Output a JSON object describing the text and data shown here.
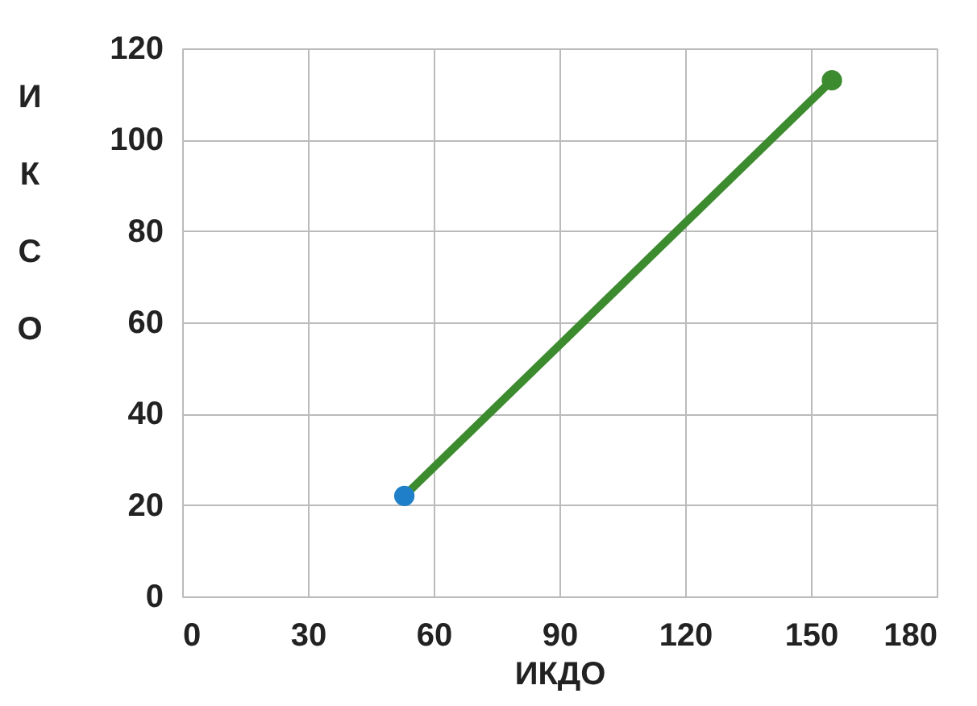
{
  "chart_data": {
    "type": "line",
    "xlabel": "ИКДО",
    "ylabel": "ИКСО",
    "series": [
      {
        "x": [
          53,
          155
        ],
        "values": [
          22,
          113
        ],
        "color": "#3d8b2f",
        "colors": [
          "#1f7fc8",
          "#3d8b2f"
        ],
        "marker": "circle",
        "line_style": "solid"
      }
    ],
    "xlim": [
      0,
      180
    ],
    "xticks": [
      0,
      30,
      60,
      90,
      120,
      150,
      180
    ],
    "ylim": [
      0,
      120
    ],
    "yticks": [
      0,
      20,
      40,
      60,
      80,
      100,
      120
    ],
    "grid": true
  }
}
